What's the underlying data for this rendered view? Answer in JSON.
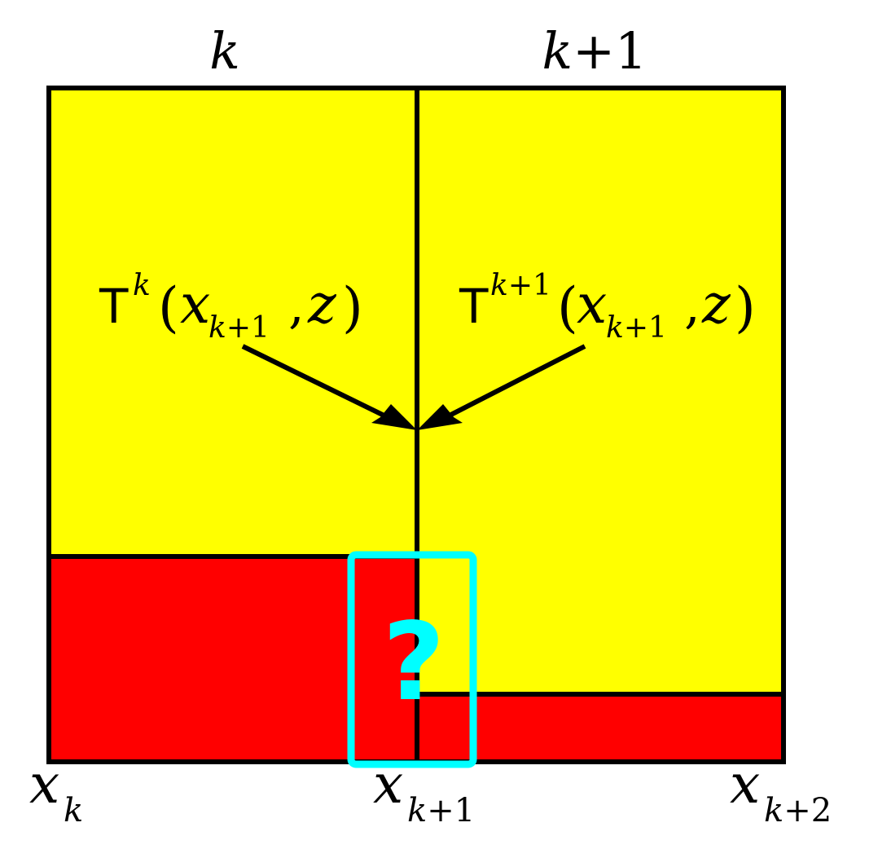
{
  "colors": {
    "upper_fill": "#ffff00",
    "lower_fill": "#ff0000",
    "stroke": "#000000",
    "highlight": "#00ffff"
  },
  "columns": {
    "left": {
      "label": "k"
    },
    "right": {
      "label_main": "k",
      "label_op": "+",
      "label_num": "1"
    }
  },
  "expressions": {
    "left": {
      "symbol": "T",
      "superscript": "k",
      "open_paren": "(",
      "var": "x",
      "subscript_var": "k",
      "subscript_op": "+",
      "subscript_num": "1",
      "comma": ",",
      "second_arg": "z",
      "close_paren": ")"
    },
    "right": {
      "symbol": "T",
      "sup_var": "k",
      "sup_op": "+",
      "sup_num": "1",
      "open_paren": "(",
      "var": "x",
      "subscript_var": "k",
      "subscript_op": "+",
      "subscript_num": "1",
      "comma": ",",
      "second_arg": "z",
      "close_paren": ")"
    }
  },
  "highlight_box": {
    "symbol": "?"
  },
  "axis_labels": [
    {
      "var": "x",
      "sub": "k"
    },
    {
      "var": "x",
      "sub_var": "k",
      "sub_op": "+",
      "sub_num": "1"
    },
    {
      "var": "x",
      "sub_var": "k",
      "sub_op": "+",
      "sub_num": "2"
    }
  ]
}
